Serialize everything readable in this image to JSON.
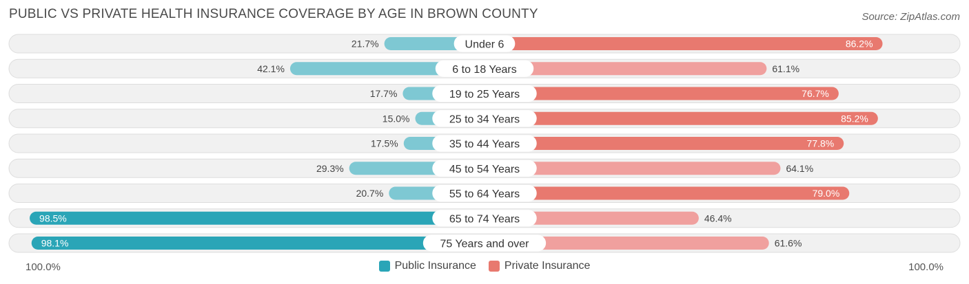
{
  "header": {
    "title": "PUBLIC VS PRIVATE HEALTH INSURANCE COVERAGE BY AGE IN BROWN COUNTY",
    "source": "Source: ZipAtlas.com"
  },
  "colors": {
    "public_light": "#7ec8d3",
    "public_dark": "#2aa5b7",
    "private_light": "#f0a09e",
    "private_dark": "#e8796f",
    "row_bg": "#f1f1f1",
    "row_border": "#dddddd"
  },
  "axis": {
    "left_label": "100.0%",
    "right_label": "100.0%"
  },
  "chart_data": {
    "type": "bar",
    "orientation": "horizontal-diverging",
    "title": "PUBLIC VS PRIVATE HEALTH INSURANCE COVERAGE BY AGE IN BROWN COUNTY",
    "categories": [
      "Under 6",
      "6 to 18 Years",
      "19 to 25 Years",
      "25 to 34 Years",
      "35 to 44 Years",
      "45 to 54 Years",
      "55 to 64 Years",
      "65 to 74 Years",
      "75 Years and over"
    ],
    "series": [
      {
        "name": "Public Insurance",
        "values": [
          21.7,
          42.1,
          17.7,
          15.0,
          17.5,
          29.3,
          20.7,
          98.5,
          98.1
        ],
        "labels": [
          "21.7%",
          "42.1%",
          "17.7%",
          "15.0%",
          "17.5%",
          "29.3%",
          "20.7%",
          "98.5%",
          "98.1%"
        ]
      },
      {
        "name": "Private Insurance",
        "values": [
          86.2,
          61.1,
          76.7,
          85.2,
          77.8,
          64.1,
          79.0,
          46.4,
          61.6
        ],
        "labels": [
          "86.2%",
          "61.1%",
          "76.7%",
          "85.2%",
          "77.8%",
          "64.1%",
          "79.0%",
          "46.4%",
          "61.6%"
        ]
      }
    ],
    "xlim": [
      -100,
      100
    ],
    "legend": "bottom-center"
  }
}
